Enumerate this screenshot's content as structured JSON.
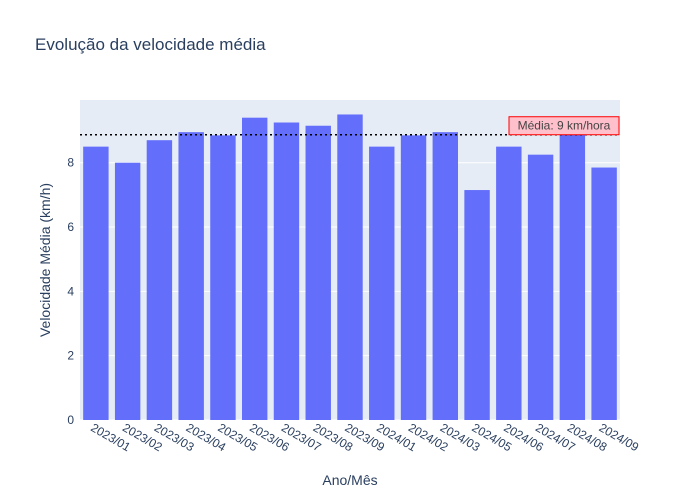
{
  "chart_data": {
    "type": "bar",
    "title": "Evolução da velocidade média",
    "xlabel": "Ano/Mês",
    "ylabel": "Velocidade Média (km/h)",
    "categories": [
      "2023/01",
      "2023/02",
      "2023/03",
      "2023/04",
      "2023/05",
      "2023/06",
      "2023/07",
      "2023/08",
      "2023/09",
      "2024/01",
      "2024/02",
      "2024/03",
      "2024/05",
      "2024/06",
      "2024/07",
      "2024/08",
      "2024/09"
    ],
    "values": [
      8.5,
      8.0,
      8.7,
      8.95,
      8.85,
      9.4,
      9.25,
      9.15,
      9.5,
      8.5,
      8.85,
      8.95,
      7.15,
      8.5,
      8.25,
      9.0,
      7.85
    ],
    "ylim": [
      0,
      9.95
    ],
    "yticks": [
      0,
      2,
      4,
      6,
      8
    ],
    "bar_color": "#636efa",
    "plot_bg": "#e5ecf6",
    "average": {
      "value": 8.87,
      "label": "Média: 9 km/hora",
      "line_style": "dotted",
      "line_color": "#000000",
      "label_bg": "#ffc0cb",
      "label_border": "#ff0000"
    },
    "grid": true
  }
}
